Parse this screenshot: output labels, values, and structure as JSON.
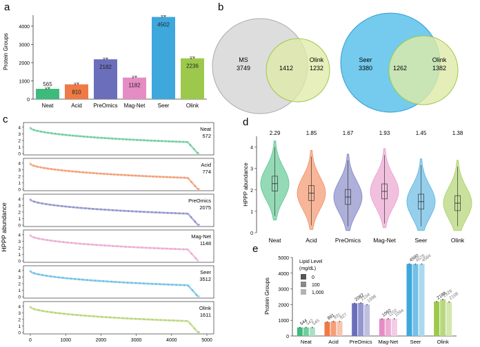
{
  "panels": {
    "a": "a",
    "b": "b",
    "c": "c",
    "d": "d",
    "e": "e"
  },
  "colors": {
    "neat": "#3dbb7a",
    "acid": "#f07a45",
    "preomics": "#6b6fbb",
    "magnet": "#e68cc5",
    "seer": "#3ea8dd",
    "olink": "#9cc94b",
    "ms_circle": "#d9d9d9",
    "olink_circle": "#dfeaa6",
    "seer_circle": "#5cc2ea"
  },
  "chart_data": [
    {
      "id": "a",
      "type": "bar",
      "ylabel": "Protein Groups",
      "ylim": [
        0,
        4600
      ],
      "yticks": [
        0,
        1000,
        2000,
        3000,
        4000
      ],
      "categories": [
        "Neat",
        "Acid",
        "PreOmics",
        "Mag-Net",
        "Seer",
        "Olink"
      ],
      "values": [
        565,
        810,
        2182,
        1182,
        4502,
        2236
      ],
      "value_labels": [
        "565",
        "810",
        "2182",
        "1182",
        "4502",
        "2236"
      ]
    },
    {
      "id": "b",
      "type": "venn",
      "diagrams": [
        {
          "left_label": "MS",
          "left_only": "3749",
          "overlap": "1412",
          "right_label": "Olink",
          "right_only": "1232"
        },
        {
          "left_label": "Seer",
          "left_only": "3380",
          "overlap": "1262",
          "right_label": "Olink",
          "right_only": "1382"
        }
      ]
    },
    {
      "id": "c",
      "type": "scatter",
      "ylabel": "HPPP abundance",
      "xlim": [
        0,
        5000
      ],
      "xticks": [
        0,
        1000,
        2000,
        3000,
        4000,
        5000
      ],
      "yticks": [
        0,
        1,
        2,
        3,
        4
      ],
      "series": [
        {
          "name": "Neat",
          "count": "572",
          "n": 572,
          "key": "neat"
        },
        {
          "name": "Acid",
          "count": "774",
          "n": 774,
          "key": "acid"
        },
        {
          "name": "PreOmics",
          "count": "2075",
          "n": 2075,
          "key": "preomics"
        },
        {
          "name": "Mag-Net",
          "count": "1148",
          "n": 1148,
          "key": "magnet"
        },
        {
          "name": "Seer",
          "count": "3512",
          "n": 3512,
          "key": "seer"
        },
        {
          "name": "Olink",
          "count": "1611",
          "n": 1611,
          "key": "olink"
        }
      ]
    },
    {
      "id": "d",
      "type": "violin",
      "ylabel": "HPPP abundance",
      "ylim": [
        0,
        4.5
      ],
      "yticks": [
        0,
        1,
        2,
        3,
        4
      ],
      "categories": [
        "Neat",
        "Acid",
        "PreOmics",
        "Mag-Net",
        "Seer",
        "Olink"
      ],
      "medians": [
        2.29,
        1.85,
        1.67,
        1.93,
        1.45,
        1.38
      ],
      "median_labels": [
        "2.29",
        "1.85",
        "1.67",
        "1.93",
        "1.45",
        "1.38"
      ]
    },
    {
      "id": "e",
      "type": "bar",
      "ylabel": "Protein Groups",
      "ylim": [
        0,
        5000
      ],
      "yticks": [
        0,
        1000,
        2000,
        3000,
        4000,
        5000
      ],
      "legend_title": "Lipid Level",
      "legend_subtitle": "(mg/dL)",
      "legend": [
        "0",
        "100",
        "1,000"
      ],
      "categories": [
        "Neat",
        "Acid",
        "PreOmics",
        "Mag-Net",
        "Seer",
        "Olink"
      ],
      "series": [
        {
          "name": "0",
          "values": [
            544,
            891,
            2082,
            1092,
            4590,
            2188
          ],
          "labels": [
            "544",
            "891",
            "2082",
            "1092",
            "4590",
            "2188"
          ]
        },
        {
          "name": "100",
          "values": [
            542,
            931,
            2104,
            1102,
            4578,
            2329
          ],
          "labels": [
            "542",
            "931",
            "2104",
            "1102",
            "4578",
            "2329"
          ]
        },
        {
          "name": "1,000",
          "values": [
            545,
            927,
            1998,
            1094,
            4584,
            2168
          ],
          "labels": [
            "545",
            "927",
            "1998",
            "1094",
            "4584",
            "2168"
          ]
        }
      ]
    }
  ]
}
